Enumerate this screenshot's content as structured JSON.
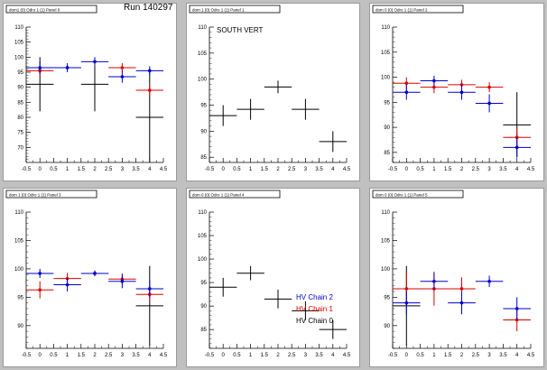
{
  "canvas_title": "Run 140297",
  "colors": {
    "chain2": "#0000cc",
    "chain1": "#dd0000",
    "chain0": "#000000"
  },
  "chart_data": [
    {
      "type": "scatter",
      "panel_title": "dom1 (0) Odro 1 (1) Panel 0",
      "x_ticks": [
        "-0.5",
        "0",
        "0.5",
        "1",
        "1.5",
        "2",
        "2.5",
        "3",
        "3.5",
        "4",
        "4.5"
      ],
      "y_ticks": [
        "70",
        "75",
        "80",
        "85",
        "90",
        "95",
        "100",
        "105",
        "110"
      ],
      "xlim": [
        -0.5,
        4.5
      ],
      "ylim": [
        65,
        110
      ],
      "series": [
        {
          "key": "chain0",
          "points": [
            {
              "x": 0,
              "y": 91,
              "ey": 9
            },
            {
              "x": 2,
              "y": 91,
              "ey": 9
            },
            {
              "x": 4,
              "y": 80,
              "ey": 15
            }
          ]
        },
        {
          "key": "chain1",
          "points": [
            {
              "x": 0,
              "y": 95.5,
              "ey": 1.5
            },
            {
              "x": 1,
              "y": 96.5,
              "ey": 0.8
            },
            {
              "x": 3,
              "y": 96.5,
              "ey": 1.5
            },
            {
              "x": 4,
              "y": 89,
              "ey": 1.5
            }
          ]
        },
        {
          "key": "chain2",
          "points": [
            {
              "x": 0,
              "y": 96.5,
              "ey": 2
            },
            {
              "x": 1,
              "y": 96.5,
              "ey": 1.5
            },
            {
              "x": 2,
              "y": 98.5,
              "ey": 1.5
            },
            {
              "x": 3,
              "y": 93.5,
              "ey": 2
            },
            {
              "x": 4,
              "y": 95.5,
              "ey": 1.5
            }
          ]
        }
      ]
    },
    {
      "type": "scatter",
      "panel_title": "dom 1 (0) Odro 1 (1) Panel 1",
      "annotation": "SOUTH VERT",
      "x_ticks": [
        "-0.5",
        "0",
        "0.5",
        "1",
        "1.5",
        "2",
        "2.5",
        "3",
        "3.5",
        "4",
        "4.5"
      ],
      "y_ticks": [
        "85",
        "90",
        "95",
        "100",
        "105",
        "110"
      ],
      "xlim": [
        -0.5,
        4.5
      ],
      "ylim": [
        84,
        110
      ],
      "series": [
        {
          "key": "chain0",
          "points": [
            {
              "x": 0,
              "y": 93,
              "ey": 2
            },
            {
              "x": 1,
              "y": 94.2,
              "ey": 2
            },
            {
              "x": 2,
              "y": 98.5,
              "ey": 1.2
            },
            {
              "x": 3,
              "y": 94.2,
              "ey": 2
            },
            {
              "x": 4,
              "y": 88,
              "ey": 2
            }
          ]
        }
      ]
    },
    {
      "type": "scatter",
      "panel_title": "dom 0 (0) Odro 1 (1) Panel 2",
      "x_ticks": [
        "-0.5",
        "0",
        "0.5",
        "1",
        "1.5",
        "2",
        "2.5",
        "3",
        "3.5",
        "4",
        "4.5"
      ],
      "y_ticks": [
        "85",
        "90",
        "95",
        "100",
        "105",
        "110"
      ],
      "xlim": [
        -0.5,
        4.5
      ],
      "ylim": [
        83,
        110
      ],
      "series": [
        {
          "key": "chain0",
          "points": [
            {
              "x": 4,
              "y": 90.5,
              "ey": 6.5
            }
          ]
        },
        {
          "key": "chain1",
          "points": [
            {
              "x": 0,
              "y": 98.8,
              "ey": 1.2
            },
            {
              "x": 1,
              "y": 98,
              "ey": 1.2
            },
            {
              "x": 2,
              "y": 98.5,
              "ey": 1
            },
            {
              "x": 3,
              "y": 98,
              "ey": 1
            },
            {
              "x": 4,
              "y": 88,
              "ey": 2
            }
          ]
        },
        {
          "key": "chain2",
          "points": [
            {
              "x": 0,
              "y": 97,
              "ey": 1.5
            },
            {
              "x": 1,
              "y": 99.3,
              "ey": 1
            },
            {
              "x": 2,
              "y": 97,
              "ey": 1.5
            },
            {
              "x": 3,
              "y": 94.8,
              "ey": 1.8
            },
            {
              "x": 4,
              "y": 86,
              "ey": 2
            }
          ]
        }
      ]
    },
    {
      "type": "scatter",
      "panel_title": "dom 1 (0) Odro 1 (1) Panel 3",
      "x_ticks": [
        "-0.5",
        "0",
        "0.5",
        "1",
        "1.5",
        "2",
        "2.5",
        "3",
        "3.5",
        "4",
        "4.5"
      ],
      "y_ticks": [
        "90",
        "95",
        "100",
        "105",
        "110"
      ],
      "xlim": [
        -0.5,
        4.5
      ],
      "ylim": [
        86,
        110
      ],
      "series": [
        {
          "key": "chain0",
          "points": [
            {
              "x": 4,
              "y": 93.5,
              "ey": 7
            }
          ]
        },
        {
          "key": "chain1",
          "points": [
            {
              "x": 0,
              "y": 96.3,
              "ey": 1.5
            },
            {
              "x": 1,
              "y": 98.3,
              "ey": 1
            },
            {
              "x": 2,
              "y": 99.2,
              "ey": 0.5
            },
            {
              "x": 3,
              "y": 98.2,
              "ey": 1
            },
            {
              "x": 4,
              "y": 95.5,
              "ey": 1.2
            }
          ]
        },
        {
          "key": "chain2",
          "points": [
            {
              "x": 0,
              "y": 99.2,
              "ey": 0.8
            },
            {
              "x": 1,
              "y": 97.2,
              "ey": 1.2
            },
            {
              "x": 2,
              "y": 99.2,
              "ey": 0.5
            },
            {
              "x": 3,
              "y": 97.8,
              "ey": 1.2
            },
            {
              "x": 4,
              "y": 96.5,
              "ey": 1.5
            }
          ]
        }
      ]
    },
    {
      "type": "scatter",
      "panel_title": "dom 0 (0) Odro 1 (1) Panel 4",
      "x_ticks": [
        "-0.5",
        "0",
        "0.5",
        "1",
        "1.5",
        "2",
        "2.5",
        "3",
        "3.5",
        "4",
        "4.5"
      ],
      "y_ticks": [
        "85",
        "90",
        "95",
        "100",
        "105",
        "110"
      ],
      "xlim": [
        -0.5,
        4.5
      ],
      "ylim": [
        81,
        110
      ],
      "legend": [
        "HV Chain 2",
        "HV Chain 1",
        "HV Chain 0"
      ],
      "legend_keys": [
        "chain2",
        "chain1",
        "chain0"
      ],
      "series": [
        {
          "key": "chain0",
          "points": [
            {
              "x": 0,
              "y": 94,
              "ey": 2
            },
            {
              "x": 1,
              "y": 97,
              "ey": 1.5
            },
            {
              "x": 2,
              "y": 91.5,
              "ey": 2
            },
            {
              "x": 3,
              "y": 89,
              "ey": 2
            },
            {
              "x": 4,
              "y": 85,
              "ey": 2
            }
          ]
        }
      ]
    },
    {
      "type": "scatter",
      "panel_title": "dom 0 (0) Odro 1 (1) Panel 5",
      "x_ticks": [
        "-0.5",
        "0",
        "0.5",
        "1",
        "1.5",
        "2",
        "2.5",
        "3",
        "3.5",
        "4",
        "4.5"
      ],
      "y_ticks": [
        "90",
        "95",
        "100",
        "105",
        "110"
      ],
      "xlim": [
        -0.5,
        4.5
      ],
      "ylim": [
        86,
        110
      ],
      "series": [
        {
          "key": "chain0",
          "points": [
            {
              "x": 0,
              "y": 93.5,
              "ey": 7
            }
          ]
        },
        {
          "key": "chain1",
          "points": [
            {
              "x": 0,
              "y": 96.5,
              "ey": 3
            },
            {
              "x": 1,
              "y": 96.5,
              "ey": 3
            },
            {
              "x": 2,
              "y": 96.5,
              "ey": 2
            },
            {
              "x": 4,
              "y": 91,
              "ey": 2
            }
          ]
        },
        {
          "key": "chain2",
          "points": [
            {
              "x": 0,
              "y": 94,
              "ey": 2
            },
            {
              "x": 1,
              "y": 97.8,
              "ey": 1.5
            },
            {
              "x": 2,
              "y": 94,
              "ey": 2
            },
            {
              "x": 3,
              "y": 97.8,
              "ey": 1
            },
            {
              "x": 4,
              "y": 93,
              "ey": 2
            }
          ]
        }
      ]
    }
  ]
}
